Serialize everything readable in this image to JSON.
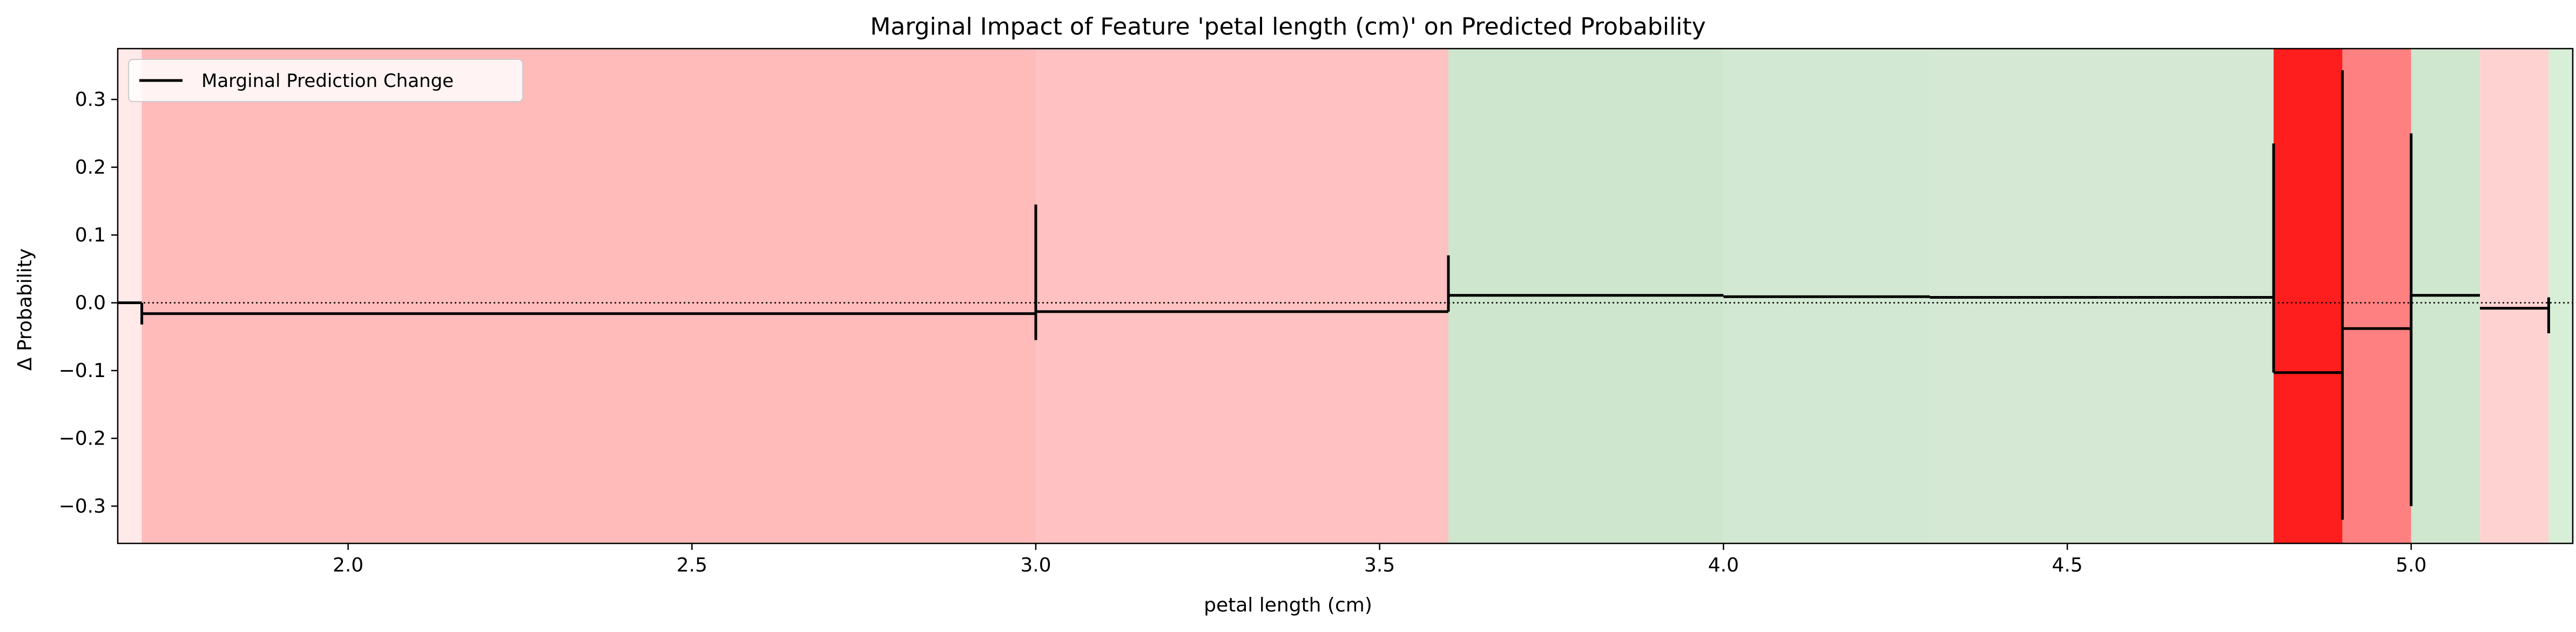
{
  "chart_data": {
    "type": "step",
    "title": "Marginal Impact of Feature 'petal length (cm)' on Predicted Probability",
    "xlabel": "petal length (cm)",
    "ylabel": "Δ Probability",
    "xlim": [
      1.665,
      5.235
    ],
    "ylim": [
      -0.355,
      0.375
    ],
    "xticks": [
      2.0,
      2.5,
      3.0,
      3.5,
      4.0,
      4.5,
      5.0
    ],
    "xtick_labels": [
      "2.0",
      "2.5",
      "3.0",
      "3.5",
      "4.0",
      "4.5",
      "5.0"
    ],
    "yticks": [
      -0.3,
      -0.2,
      -0.1,
      0.0,
      0.1,
      0.2,
      0.3
    ],
    "ytick_labels": [
      "−0.3",
      "−0.2",
      "−0.1",
      "0.0",
      "0.1",
      "0.2",
      "0.3"
    ],
    "legend": {
      "position": "top-left",
      "entries": [
        "Marginal Prediction Change"
      ]
    },
    "reference_line": {
      "y": 0.0,
      "style": "dotted"
    },
    "bands": [
      {
        "x0": 1.665,
        "x1": 1.7,
        "color": "#ffe9e9"
      },
      {
        "x0": 1.7,
        "x1": 3.0,
        "color": "#ffbaba"
      },
      {
        "x0": 3.0,
        "x1": 3.6,
        "color": "#ffc1c1"
      },
      {
        "x0": 3.6,
        "x1": 4.0,
        "color": "#cde6cd"
      },
      {
        "x0": 4.0,
        "x1": 4.3,
        "color": "#d3e8d3"
      },
      {
        "x0": 4.3,
        "x1": 4.8,
        "color": "#d4e8d4"
      },
      {
        "x0": 4.8,
        "x1": 4.9,
        "color": "#ff1e1e"
      },
      {
        "x0": 4.9,
        "x1": 5.0,
        "color": "#ff8080"
      },
      {
        "x0": 5.0,
        "x1": 5.1,
        "color": "#cfe7cf"
      },
      {
        "x0": 5.1,
        "x1": 5.2,
        "color": "#ffd2d2"
      },
      {
        "x0": 5.2,
        "x1": 5.235,
        "color": "#d7eed7"
      }
    ],
    "segments": [
      {
        "x0": 1.665,
        "x1": 1.7,
        "y": 0.0
      },
      {
        "x0": 1.7,
        "x1": 3.0,
        "y": -0.016
      },
      {
        "x0": 3.0,
        "x1": 3.6,
        "y": -0.013
      },
      {
        "x0": 3.6,
        "x1": 4.0,
        "y": 0.011
      },
      {
        "x0": 4.0,
        "x1": 4.3,
        "y": 0.009
      },
      {
        "x0": 4.3,
        "x1": 4.8,
        "y": 0.008
      },
      {
        "x0": 4.8,
        "x1": 4.9,
        "y": -0.103
      },
      {
        "x0": 4.9,
        "x1": 5.0,
        "y": -0.038
      },
      {
        "x0": 5.0,
        "x1": 5.1,
        "y": 0.011
      },
      {
        "x0": 5.1,
        "x1": 5.2,
        "y": -0.008
      }
    ],
    "spikes": [
      {
        "x": 1.7,
        "ymin": -0.032,
        "ymax": 0.0
      },
      {
        "x": 3.0,
        "ymin": -0.055,
        "ymax": 0.145
      },
      {
        "x": 3.6,
        "ymin": -0.013,
        "ymax": 0.07
      },
      {
        "x": 4.8,
        "ymin": -0.103,
        "ymax": 0.235
      },
      {
        "x": 4.9,
        "ymin": -0.32,
        "ymax": 0.343
      },
      {
        "x": 5.0,
        "ymin": -0.3,
        "ymax": 0.25
      },
      {
        "x": 5.2,
        "ymin": -0.045,
        "ymax": 0.008
      }
    ],
    "line_color": "#000000"
  }
}
